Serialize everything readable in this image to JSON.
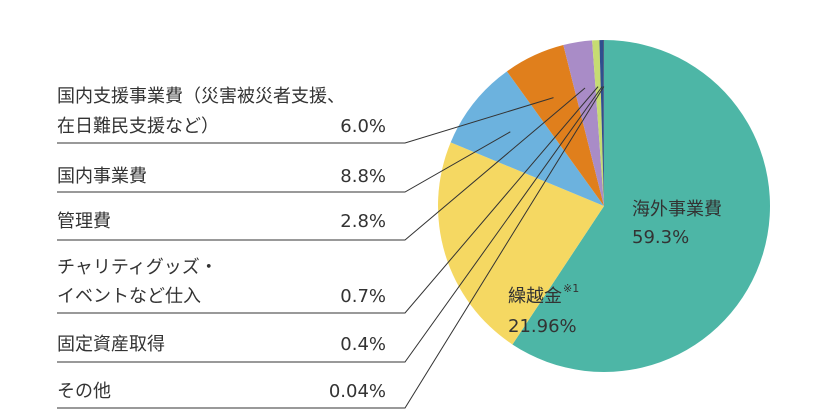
{
  "chart_data": {
    "type": "pie",
    "slices": [
      {
        "name": [
          "海外事業費"
        ],
        "value": 59.3,
        "value_label": "59.3%",
        "color": "#4db6a6"
      },
      {
        "name": [
          "繰越金"
        ],
        "note": "※1",
        "value": 21.96,
        "value_label": "21.96%",
        "color": "#f5d862"
      },
      {
        "name": [
          "国内事業費"
        ],
        "value": 8.8,
        "value_label": "8.8%",
        "color": "#6cb2de"
      },
      {
        "name": [
          "国内支援事業費（災害被災者支援、",
          "在日難民支援など）"
        ],
        "value": 6.0,
        "value_label": "6.0%",
        "color": "#e07f1c"
      },
      {
        "name": [
          "管理費"
        ],
        "value": 2.8,
        "value_label": "2.8%",
        "color": "#a98cc7"
      },
      {
        "name": [
          "チャリティグッズ・",
          "イベントなど仕入"
        ],
        "value": 0.7,
        "value_label": "0.7%",
        "color": "#c6dc72"
      },
      {
        "name": [
          "固定資産取得"
        ],
        "value": 0.4,
        "value_label": "0.4%",
        "color": "#2f4f8f"
      },
      {
        "name": [
          "その他"
        ],
        "value": 0.04,
        "value_label": "0.04%",
        "color": "#555555"
      }
    ]
  }
}
